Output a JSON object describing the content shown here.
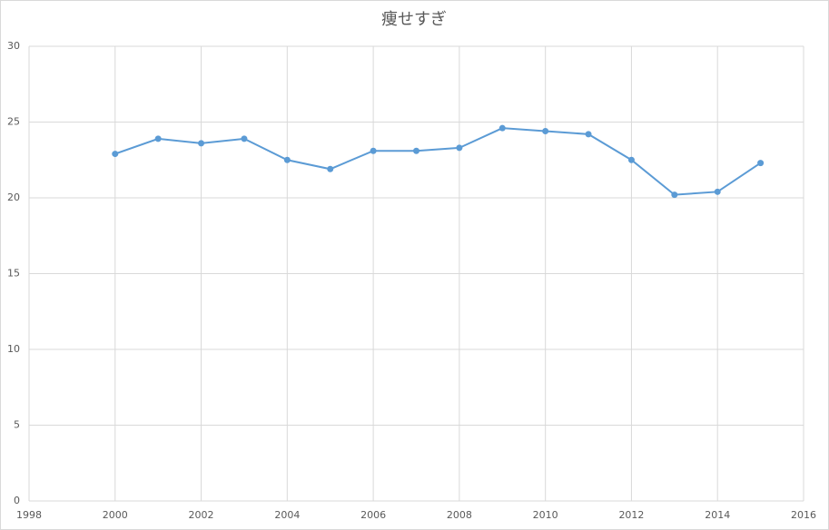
{
  "chart_data": {
    "type": "line",
    "title": "痩せすぎ",
    "x": [
      2000,
      2001,
      2002,
      2003,
      2004,
      2005,
      2006,
      2007,
      2008,
      2009,
      2010,
      2011,
      2012,
      2013,
      2014,
      2015
    ],
    "series": [
      {
        "color": "#5b9bd5",
        "values": [
          22.9,
          23.9,
          23.6,
          23.9,
          22.5,
          21.9,
          23.1,
          23.1,
          23.3,
          24.6,
          24.4,
          24.2,
          22.5,
          20.2,
          20.4,
          22.3
        ]
      }
    ],
    "xlim": [
      1998,
      2016
    ],
    "xticks": [
      1998,
      2000,
      2002,
      2004,
      2006,
      2008,
      2010,
      2012,
      2014,
      2016
    ],
    "ylim": [
      0,
      30
    ],
    "yticks": [
      0,
      5,
      10,
      15,
      20,
      25,
      30
    ],
    "grid": true
  }
}
